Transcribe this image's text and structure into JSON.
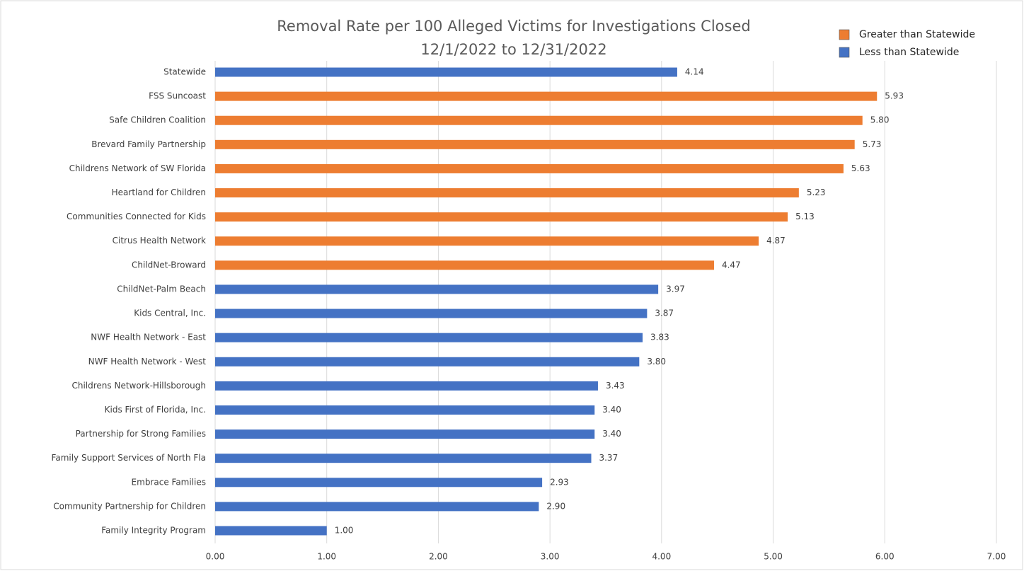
{
  "chart_data": {
    "type": "bar",
    "orientation": "horizontal",
    "title": [
      "Removal Rate per 100 Alleged Victims for Investigations Closed",
      "12/1/2022 to 12/31/2022"
    ],
    "categories": [
      "Statewide",
      "FSS Suncoast",
      "Safe Children Coalition",
      "Brevard Family Partnership",
      "Childrens Network of SW Florida",
      "Heartland for Children",
      "Communities Connected for Kids",
      "Citrus Health Network",
      "ChildNet-Broward",
      "ChildNet-Palm Beach",
      "Kids Central, Inc.",
      "NWF Health Network - East",
      "NWF Health Network - West",
      "Childrens Network-Hillsborough",
      "Kids First of Florida, Inc.",
      "Partnership for Strong Families",
      "Family Support Services of North Fla",
      "Embrace Families",
      "Community Partnership for Children",
      "Family Integrity Program"
    ],
    "series": [
      {
        "name": "Greater than Statewide",
        "color": "#ED7D31",
        "values": [
          null,
          5.93,
          5.8,
          5.73,
          5.63,
          5.23,
          5.13,
          4.87,
          4.47,
          null,
          null,
          null,
          null,
          null,
          null,
          null,
          null,
          null,
          null,
          null
        ],
        "value_labels": [
          null,
          "5.93",
          "5.80",
          "5.73",
          "5.63",
          "5.23",
          "5.13",
          "4.87",
          "4.47",
          null,
          null,
          null,
          null,
          null,
          null,
          null,
          null,
          null,
          null,
          null
        ]
      },
      {
        "name": "Less than Statewide",
        "color": "#4472C4",
        "values": [
          4.14,
          null,
          null,
          null,
          null,
          null,
          null,
          null,
          null,
          3.97,
          3.87,
          3.83,
          3.8,
          3.43,
          3.4,
          3.4,
          3.37,
          2.93,
          2.9,
          1
        ],
        "value_labels": [
          "4.14",
          null,
          null,
          null,
          null,
          null,
          null,
          null,
          null,
          "3.97",
          "3.87",
          "3.83",
          "3.80",
          "3.43",
          "3.40",
          "3.40",
          "3.37",
          "2.93",
          "2.90",
          "1.00"
        ]
      }
    ],
    "xlim": [
      0,
      7
    ],
    "xticks": [
      {
        "value": 0,
        "label": "0.00"
      },
      {
        "value": 1,
        "label": "1.00"
      },
      {
        "value": 2,
        "label": "2.00"
      },
      {
        "value": 3,
        "label": "3.00"
      },
      {
        "value": 4,
        "label": "4.00"
      },
      {
        "value": 5,
        "label": "5.00"
      },
      {
        "value": 6,
        "label": "6.00"
      },
      {
        "value": 7,
        "label": "7.00"
      }
    ],
    "grid": true,
    "legend": "top-right"
  }
}
